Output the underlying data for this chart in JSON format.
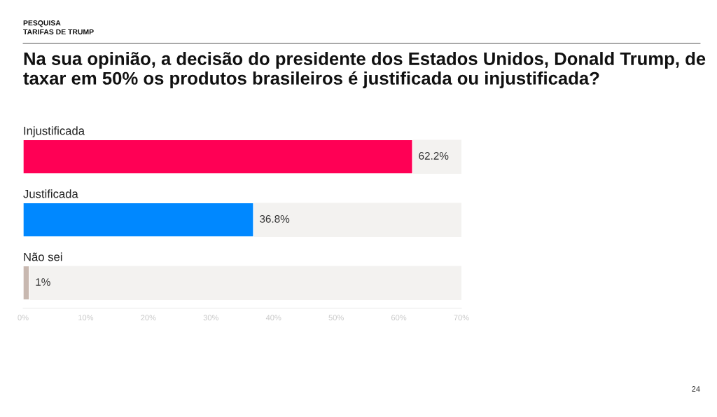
{
  "chart_data": {
    "type": "bar",
    "orientation": "horizontal",
    "title": "Na sua opinião, a decisão do presidente dos Estados Unidos, Donald Trump, de taxar em 50% os produtos brasileiros é justificada ou injustificada?",
    "subtitle": "PESQUISA\nTARIFAS DE TRUMP",
    "categories": [
      "Injustificada",
      "Justificada",
      "Não sei"
    ],
    "values": [
      62.2,
      36.8,
      1
    ],
    "colors": [
      "#ff0055",
      "#0088ff",
      "#c8b8b0"
    ],
    "value_labels": [
      "62.2%",
      "36.8%",
      "1%"
    ],
    "xlim": [
      0,
      70
    ],
    "xticks": [
      {
        "value": 0,
        "label": "0%"
      },
      {
        "value": 10,
        "label": "10%"
      },
      {
        "value": 20,
        "label": "20%"
      },
      {
        "value": 30,
        "label": "30%"
      },
      {
        "value": 40,
        "label": "40%"
      },
      {
        "value": 50,
        "label": "50%"
      },
      {
        "value": 60,
        "label": "60%"
      },
      {
        "value": 70,
        "label": "70%"
      }
    ],
    "tick_labels": "x",
    "grid": false,
    "legend": false,
    "annotations": [
      "24"
    ]
  }
}
